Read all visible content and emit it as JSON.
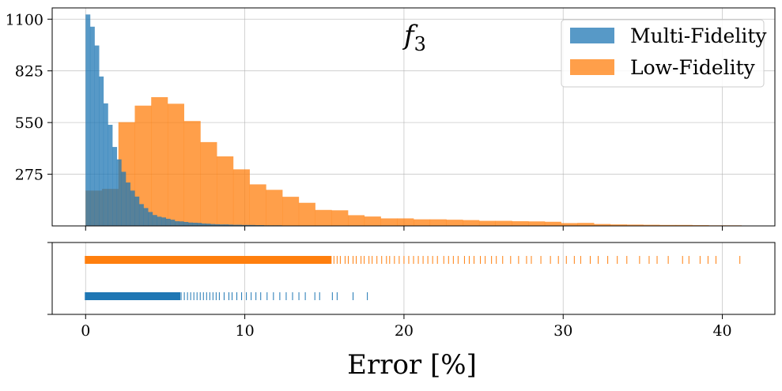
{
  "chart_data": {
    "type": "histogram",
    "annotation": "f",
    "annotation_subscript": "3",
    "xlabel": "Error [%]",
    "xlim": [
      -2.1,
      43.3
    ],
    "x_ticks": [
      0,
      10,
      20,
      30,
      40
    ],
    "x_tick_labels": [
      "0",
      "10",
      "20",
      "30",
      "40"
    ],
    "grid": true,
    "legend_position": "top-right",
    "histogram": {
      "ylim": [
        0,
        1160
      ],
      "y_ticks": [
        275,
        550,
        825,
        1100
      ],
      "y_tick_labels": [
        "275",
        "550",
        "825",
        "1100"
      ],
      "series": [
        {
          "name": "Low-Fidelity",
          "color": "#ff7f0e",
          "opacity": 0.75,
          "bin_edges": [
            0,
            1.03,
            2.06,
            3.09,
            4.12,
            5.15,
            6.18,
            7.21,
            8.24,
            9.27,
            10.3,
            11.33,
            12.36,
            13.39,
            14.42,
            15.45,
            16.48,
            17.51,
            18.54,
            19.57,
            20.6,
            21.63,
            22.66,
            23.69,
            24.72,
            25.75,
            26.78,
            27.81,
            28.84,
            29.87,
            30.9,
            31.93,
            32.96,
            33.99,
            35.02,
            36.05,
            37.08,
            38.11,
            39.14,
            40.17,
            41.2
          ],
          "values": [
            188,
            197,
            552,
            640,
            685,
            650,
            558,
            446,
            370,
            301,
            221,
            192,
            155,
            123,
            85,
            83,
            57,
            50,
            40,
            40,
            35,
            35,
            33,
            31,
            27,
            27,
            25,
            24,
            22,
            15,
            16,
            10,
            8,
            7,
            6,
            5,
            5,
            4,
            3,
            3
          ]
        },
        {
          "name": "Multi-Fidelity",
          "color": "#1f77b4",
          "opacity": 0.75,
          "bin_edges": [
            0,
            0.28,
            0.56,
            0.84,
            1.12,
            1.4,
            1.68,
            1.96,
            2.24,
            2.52,
            2.8,
            3.08,
            3.36,
            3.64,
            3.92,
            4.2,
            4.48,
            4.76,
            5.04,
            5.32,
            5.6,
            5.88,
            6.16,
            6.44,
            6.72,
            7.0,
            7.28,
            7.56,
            7.84,
            8.12,
            8.4,
            8.68,
            8.96,
            9.24,
            9.52,
            9.8,
            10.08,
            10.36,
            10.64,
            10.92,
            11.2,
            11.48,
            11.76,
            12.04,
            12.32,
            12.6,
            12.88,
            13.16,
            13.44,
            13.72,
            14.0,
            14.28,
            14.56,
            14.84,
            15.12,
            15.4,
            15.68,
            15.96,
            16.24,
            16.52,
            16.8,
            17.08,
            17.36,
            17.64,
            17.92
          ],
          "values": [
            1125,
            1060,
            960,
            795,
            652,
            538,
            420,
            354,
            288,
            231,
            188,
            156,
            116,
            95,
            74,
            58,
            49,
            45,
            38,
            33,
            25,
            24,
            21,
            18,
            17,
            16,
            13,
            12,
            10,
            9,
            8,
            8,
            7,
            6,
            6,
            5,
            5,
            5,
            4,
            4,
            3,
            3,
            3,
            3,
            2,
            2,
            2,
            2,
            2,
            2,
            1,
            1,
            1,
            1,
            1,
            1,
            1,
            1,
            1,
            1,
            1,
            1,
            1,
            1
          ]
        }
      ]
    },
    "legend": [
      {
        "name": "Multi-Fidelity",
        "color": "#1f77b4"
      },
      {
        "name": "Low-Fidelity",
        "color": "#ff7f0e"
      }
    ],
    "rug": {
      "series": [
        {
          "name": "Low-Fidelity",
          "color": "#ff7f0e",
          "dense_ranges": [
            [
              0,
              15.4
            ]
          ],
          "x": [
            15.6,
            15.8,
            16.0,
            16.3,
            16.5,
            16.8,
            17.0,
            17.3,
            17.5,
            17.8,
            18.0,
            18.3,
            18.6,
            18.9,
            19.1,
            19.4,
            19.7,
            20.0,
            20.3,
            20.6,
            20.9,
            21.2,
            21.5,
            21.8,
            22.1,
            22.5,
            22.8,
            23.1,
            23.4,
            23.8,
            24.1,
            24.4,
            24.8,
            25.1,
            25.5,
            25.8,
            26.2,
            26.7,
            27.2,
            27.7,
            28.0,
            28.6,
            29.2,
            29.7,
            30.2,
            30.7,
            31.1,
            31.7,
            32.2,
            32.8,
            33.4,
            34.0,
            34.8,
            35.4,
            35.9,
            36.6,
            37.5,
            37.9,
            38.6,
            39.1,
            39.6,
            41.1
          ]
        },
        {
          "name": "Multi-Fidelity",
          "color": "#1f77b4",
          "dense_ranges": [
            [
              0,
              5.9
            ]
          ],
          "x": [
            6.0,
            6.2,
            6.4,
            6.6,
            6.8,
            7.0,
            7.2,
            7.4,
            7.6,
            7.8,
            8.0,
            8.2,
            8.4,
            8.7,
            9.0,
            9.2,
            9.5,
            9.8,
            10.1,
            10.4,
            10.7,
            11.0,
            11.4,
            11.8,
            12.2,
            12.6,
            13.0,
            13.4,
            13.8,
            14.4,
            14.7,
            15.5,
            15.8,
            16.8,
            17.7
          ]
        }
      ]
    }
  }
}
